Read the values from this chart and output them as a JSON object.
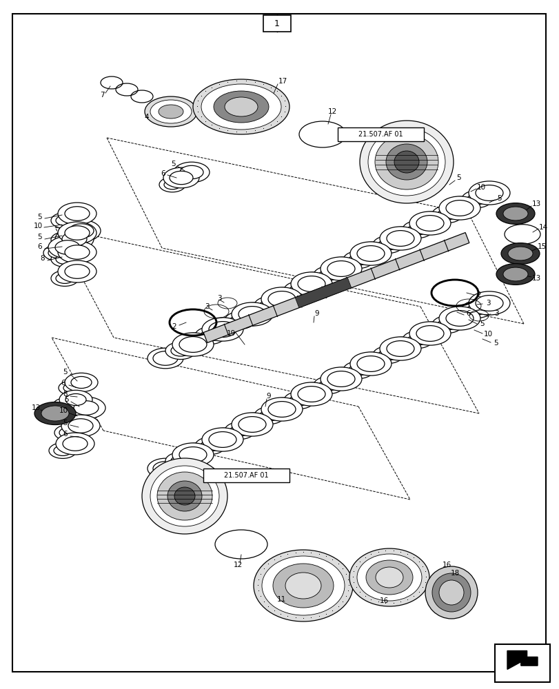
{
  "bg_color": "#ffffff",
  "line_color": "#000000",
  "figure_width": 8.12,
  "figure_height": 10.0,
  "dpi": 100
}
